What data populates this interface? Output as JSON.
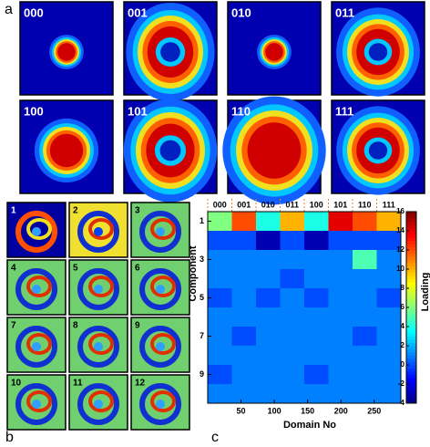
{
  "panels": {
    "a": {
      "letter": "a",
      "labels": [
        "000",
        "001",
        "010",
        "011",
        "100",
        "101",
        "110",
        "111"
      ]
    },
    "b": {
      "letter": "b",
      "labels": [
        "1",
        "2",
        "3",
        "4",
        "5",
        "6",
        "7",
        "8",
        "9",
        "10",
        "11",
        "12"
      ]
    },
    "c": {
      "letter": "c"
    }
  },
  "chart_data": {
    "type": "heatmap",
    "categories": [
      "000",
      "001",
      "010",
      "011",
      "100",
      "101",
      "110",
      "111"
    ],
    "x_label": "Domain No",
    "y_label": "Component",
    "colorbar_label": "Loading",
    "xlim": [
      0,
      290
    ],
    "xticks": [
      50,
      100,
      150,
      200,
      250
    ],
    "ylim": [
      0.5,
      10.5
    ],
    "yticks": [
      1,
      3,
      5,
      7,
      9
    ],
    "clim": [
      -4,
      16
    ],
    "cticks": [
      -4,
      -2,
      0,
      2,
      4,
      6,
      8,
      10,
      12,
      14,
      16
    ],
    "colormap": "jet",
    "values": [
      [
        6,
        12,
        4,
        10,
        4,
        14,
        12,
        10
      ],
      [
        0,
        0,
        -3,
        0,
        -3,
        0,
        0,
        0
      ],
      [
        1,
        1,
        1,
        1,
        1,
        1,
        5,
        1
      ],
      [
        1,
        1,
        1,
        0,
        1,
        1,
        1,
        1
      ],
      [
        0,
        1,
        0,
        1,
        0,
        1,
        1,
        0
      ],
      [
        1,
        1,
        1,
        1,
        1,
        1,
        1,
        1
      ],
      [
        1,
        0,
        1,
        1,
        1,
        1,
        0,
        1
      ],
      [
        1,
        1,
        1,
        1,
        1,
        1,
        1,
        1
      ],
      [
        0,
        1,
        1,
        1,
        0,
        1,
        1,
        1
      ],
      [
        1,
        1,
        1,
        1,
        1,
        1,
        1,
        1
      ]
    ]
  }
}
